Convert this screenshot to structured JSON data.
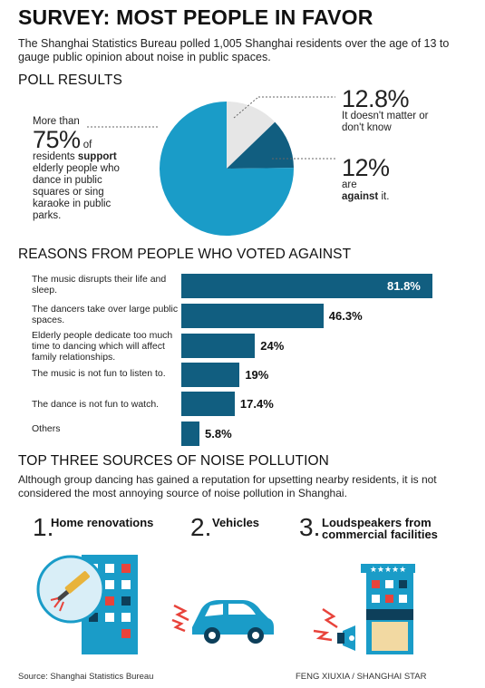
{
  "title": "SURVEY: MOST PEOPLE IN FAVOR",
  "intro": "The Shanghai Statistics Bureau polled 1,005 Shanghai residents over the age of 13 to gauge public opinion about noise in public spaces.",
  "poll": {
    "heading": "POLL RESULTS",
    "support_pre": "More than",
    "support_pct": "75%",
    "support_of": "of",
    "support_residents": "residents",
    "support_word": "support",
    "support_rest": "elderly people who dance in public squares or sing karaoke in public parks.",
    "dontcare_pct": "12.8%",
    "dontcare_text": "It doesn't matter or don't know",
    "against_pct": "12%",
    "against_are": "are",
    "against_word": "against",
    "against_rest": "it."
  },
  "reasons": {
    "heading": "REASONS FROM PEOPLE WHO VOTED AGAINST"
  },
  "noise": {
    "heading": "TOP THREE SOURCES OF NOISE POLLUTION",
    "intro": "Although group dancing has gained a reputation for upsetting nearby residents, it is not considered the most annoying source of noise pollution in Shanghai.",
    "sources": [
      {
        "num": "1.",
        "label": "Home renovations"
      },
      {
        "num": "2.",
        "label": "Vehicles"
      },
      {
        "num": "3.",
        "label": "Loudspeakers from commercial facilities"
      }
    ]
  },
  "footer": {
    "source": "Source: Shanghai Statistics Bureau",
    "credit": "FENG XIUXIA / SHANGHAI STAR"
  },
  "colors": {
    "support": "#1a9cc8",
    "against": "#115e80",
    "dontcare": "#e6e6e6",
    "bar": "#115e80"
  },
  "chart_data": [
    {
      "type": "pie",
      "title": "POLL RESULTS",
      "slices": [
        {
          "name": "support",
          "value": 75.2
        },
        {
          "name": "It doesn't matter or don't know",
          "value": 12.8
        },
        {
          "name": "against",
          "value": 12
        }
      ]
    },
    {
      "type": "bar",
      "title": "REASONS FROM PEOPLE WHO VOTED AGAINST",
      "orientation": "horizontal",
      "categories": [
        "The music disrupts their life and sleep.",
        "The dancers take over large public spaces.",
        "Elderly people dedicate too much time to dancing which will affect family relationships.",
        "The music is not fun to listen to.",
        "The dance is not fun to watch.",
        "Others"
      ],
      "values": [
        81.8,
        46.3,
        24,
        19,
        17.4,
        5.8
      ],
      "value_labels": [
        "81.8%",
        "46.3%",
        "24%",
        "19%",
        "17.4%",
        "5.8%"
      ],
      "xlim": [
        0,
        100
      ]
    }
  ]
}
